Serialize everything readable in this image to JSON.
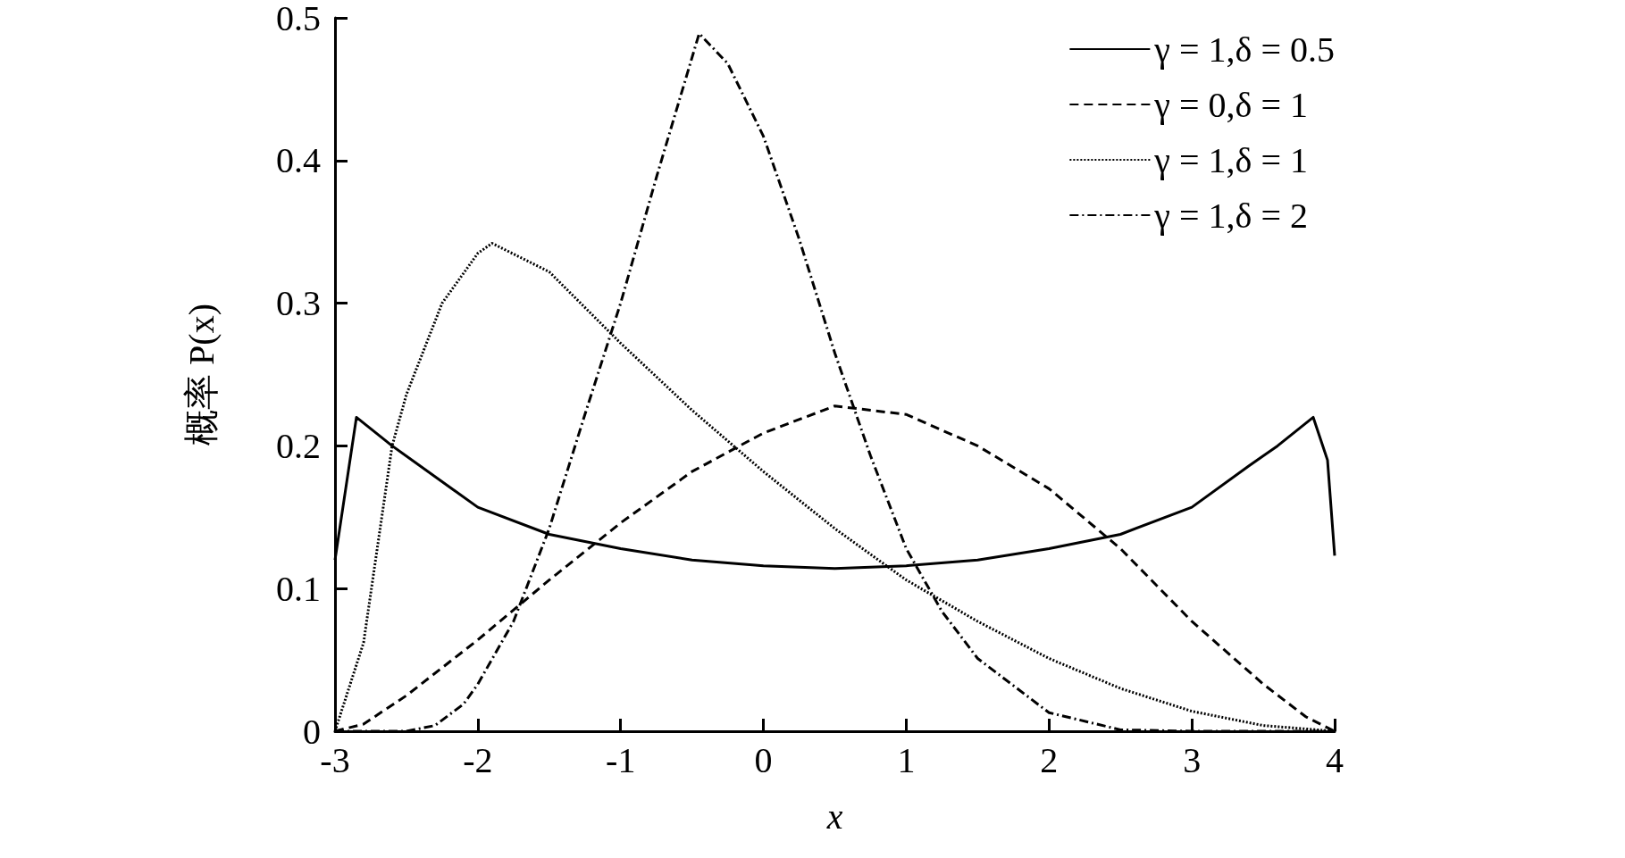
{
  "chart_data": {
    "type": "line",
    "xlabel": "x",
    "ylabel": "概率 P(x)",
    "xlim": [
      -3,
      4
    ],
    "xticks": [
      -3,
      -2,
      -1,
      0,
      1,
      2,
      3,
      4
    ],
    "ylim": [
      0,
      0.5
    ],
    "yticks": [
      0,
      0.1,
      0.2,
      0.3,
      0.4,
      0.5
    ],
    "grid": false,
    "legend": "top right",
    "marker": "none",
    "series": [
      {
        "name": "γ = 1,δ = 0.5",
        "color": "#000000",
        "line_style": "solid",
        "x": [
          -3,
          -2.85,
          -2.6,
          -2,
          -1.5,
          -1,
          -0.5,
          0,
          0.5,
          1,
          1.5,
          2,
          2.5,
          3,
          3.4,
          3.6,
          3.85,
          3.95,
          4
        ],
        "values": [
          0.12,
          0.22,
          0.2,
          0.157,
          0.138,
          0.128,
          0.12,
          0.116,
          0.114,
          0.116,
          0.12,
          0.128,
          0.138,
          0.157,
          0.186,
          0.2,
          0.22,
          0.19,
          0.123
        ]
      },
      {
        "name": "γ = 0,δ = 1",
        "color": "#000000",
        "line_style": "dashed",
        "x": [
          -3,
          -2.8,
          -2.5,
          -2,
          -1.5,
          -1,
          -0.5,
          0,
          0.5,
          1,
          1.5,
          2,
          2.5,
          3,
          3.5,
          3.8,
          4
        ],
        "values": [
          0,
          0.005,
          0.025,
          0.064,
          0.106,
          0.146,
          0.182,
          0.209,
          0.228,
          0.222,
          0.2,
          0.17,
          0.128,
          0.077,
          0.033,
          0.01,
          0
        ]
      },
      {
        "name": "γ = 1,δ = 1",
        "color": "#000000",
        "line_style": "dotted",
        "x": [
          -3,
          -2.8,
          -2.6,
          -2.5,
          -2.25,
          -2,
          -1.9,
          -1.5,
          -1,
          -0.5,
          0,
          0.5,
          1,
          1.5,
          2,
          2.5,
          3,
          3.5,
          4
        ],
        "values": [
          0,
          0.062,
          0.2,
          0.236,
          0.3,
          0.335,
          0.342,
          0.322,
          0.272,
          0.225,
          0.182,
          0.142,
          0.106,
          0.077,
          0.051,
          0.03,
          0.014,
          0.004,
          0
        ]
      },
      {
        "name": "γ = 1,δ = 2",
        "color": "#000000",
        "line_style": "dashdot",
        "x": [
          -3,
          -2.5,
          -2.3,
          -2.1,
          -2,
          -1.75,
          -1.5,
          -1.25,
          -1,
          -0.75,
          -0.45,
          -0.25,
          0,
          0.25,
          0.5,
          0.75,
          1,
          1.25,
          1.5,
          2,
          2.5,
          3,
          4
        ],
        "values": [
          0,
          0,
          0.004,
          0.019,
          0.033,
          0.077,
          0.142,
          0.222,
          0.3,
          0.388,
          0.489,
          0.468,
          0.417,
          0.345,
          0.265,
          0.193,
          0.128,
          0.084,
          0.051,
          0.013,
          0.001,
          0,
          0
        ]
      }
    ]
  }
}
